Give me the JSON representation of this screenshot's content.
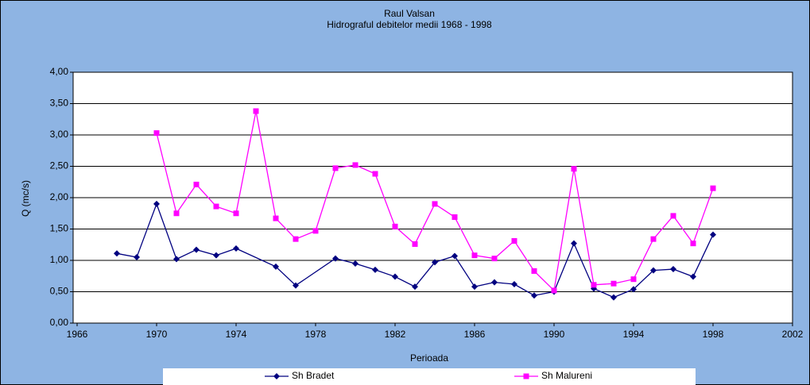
{
  "chart_data": {
    "type": "line",
    "title": "Raul Valsan",
    "subtitle": "Hidrograful debitelor medii 1968 - 1998",
    "x_label": "Perioada",
    "y_label": "Q (mc/s)",
    "xlim": [
      1966,
      2002
    ],
    "xticks": [
      1966,
      1970,
      1974,
      1978,
      1982,
      1986,
      1990,
      1994,
      1998,
      2002
    ],
    "ylim": [
      0,
      4
    ],
    "yticks": [
      {
        "value": 0,
        "label": "0,00"
      },
      {
        "value": 0.5,
        "label": "0,50"
      },
      {
        "value": 1,
        "label": "1,00"
      },
      {
        "value": 1.5,
        "label": "1,50"
      },
      {
        "value": 2,
        "label": "2,00"
      },
      {
        "value": 2.5,
        "label": "2,50"
      },
      {
        "value": 3,
        "label": "3,00"
      },
      {
        "value": 3.5,
        "label": "3,50"
      },
      {
        "value": 4,
        "label": "4,00"
      }
    ],
    "grid": true,
    "legend": "bottom",
    "series": [
      {
        "name": "Sh Bradet",
        "color": "#000080",
        "marker": "diamond",
        "x": [
          1968,
          1969,
          1970,
          1971,
          1972,
          1973,
          1974,
          1976,
          1977,
          1979,
          1980,
          1981,
          1982,
          1983,
          1984,
          1985,
          1986,
          1987,
          1988,
          1989,
          1990,
          1991,
          1992,
          1993,
          1994,
          1995,
          1996,
          1997,
          1998
        ],
        "values": [
          1.11,
          1.05,
          1.9,
          1.02,
          1.17,
          1.08,
          1.19,
          0.9,
          0.6,
          1.03,
          0.95,
          0.85,
          0.74,
          0.58,
          0.97,
          1.07,
          0.58,
          0.65,
          0.62,
          0.44,
          0.5,
          1.27,
          0.55,
          0.41,
          0.54,
          0.84,
          0.86,
          0.74,
          1.41
        ]
      },
      {
        "name": "Sh Malureni",
        "color": "#ff00ff",
        "marker": "square",
        "x": [
          1970,
          1971,
          1972,
          1973,
          1974,
          1975,
          1976,
          1977,
          1978,
          1979,
          1980,
          1981,
          1982,
          1983,
          1984,
          1985,
          1986,
          1987,
          1988,
          1989,
          1990,
          1991,
          1992,
          1993,
          1994,
          1995,
          1996,
          1997,
          1998
        ],
        "values": [
          3.03,
          1.75,
          2.21,
          1.86,
          1.75,
          3.38,
          1.67,
          1.34,
          1.47,
          2.47,
          2.52,
          2.38,
          1.54,
          1.26,
          1.9,
          1.69,
          1.08,
          1.03,
          1.31,
          0.83,
          0.52,
          2.46,
          0.61,
          0.63,
          0.7,
          1.34,
          1.71,
          1.27,
          2.15
        ]
      }
    ]
  }
}
